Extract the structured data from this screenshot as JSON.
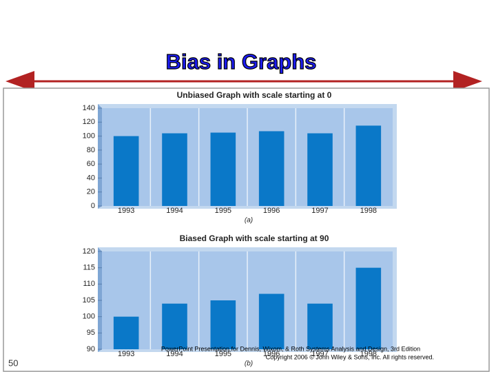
{
  "slide": {
    "title": "Bias in Graphs",
    "footer_line1": "PowerPoint Presentation for Dennis, Wixom, & Roth Systems Analysis and Design, 3rd Edition",
    "footer_line2": "Copyright 2006 © John Wiley & Sons, Inc.  All rights reserved.",
    "page_number": "50"
  },
  "chart_data": [
    {
      "type": "bar",
      "title": "Unbiased Graph with scale starting at 0",
      "caption": "(a)",
      "categories": [
        "1993",
        "1994",
        "1995",
        "1996",
        "1997",
        "1998"
      ],
      "values": [
        100,
        104,
        105,
        107,
        104,
        115
      ],
      "color": "#0a78c8",
      "ylim": [
        0,
        140
      ],
      "yticks": [
        0,
        20,
        40,
        60,
        80,
        100,
        120,
        140
      ]
    },
    {
      "type": "bar",
      "title": "Biased Graph with scale starting at 90",
      "caption": "(b)",
      "categories": [
        "1993",
        "1994",
        "1995",
        "1996",
        "1997",
        "1998"
      ],
      "values": [
        100,
        104,
        105,
        107,
        104,
        115
      ],
      "color": "#0a78c8",
      "ylim": [
        90,
        120
      ],
      "yticks": [
        90,
        95,
        100,
        105,
        110,
        115,
        120
      ]
    }
  ]
}
